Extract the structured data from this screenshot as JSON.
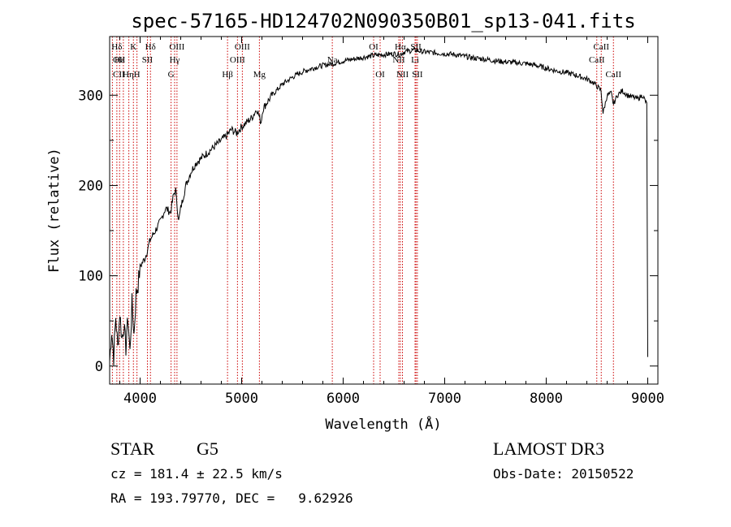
{
  "chart_data": {
    "type": "line",
    "title": "spec-57165-HD124702N090350B01_sp13-041.fits",
    "xlabel": "Wavelength (Å)",
    "ylabel": "Flux (relative)",
    "xlim": [
      3700,
      9100
    ],
    "ylim": [
      -20,
      365
    ],
    "xticks": [
      4000,
      5000,
      6000,
      7000,
      8000,
      9000
    ],
    "yticks": [
      0,
      100,
      200,
      300
    ],
    "x_tick_labels": [
      "4000",
      "5000",
      "6000",
      "7000",
      "8000",
      "9000"
    ],
    "y_tick_labels": [
      "0",
      "100",
      "200",
      "300"
    ],
    "line_color": "#000000",
    "marker_color": "#cc0000",
    "grid": false,
    "series": [
      {
        "x": [
          3700,
          3720,
          3740,
          3760,
          3780,
          3800,
          3820,
          3840,
          3860,
          3880,
          3900,
          3920,
          3940,
          3960,
          3980,
          4000,
          4050,
          4100,
          4150,
          4200,
          4250,
          4300,
          4330,
          4350,
          4380,
          4400,
          4450,
          4500,
          4550,
          4600,
          4650,
          4700,
          4750,
          4800,
          4850,
          4900,
          4950,
          5000,
          5050,
          5100,
          5150,
          5190,
          5210,
          5250,
          5300,
          5400,
          5500,
          5600,
          5700,
          5800,
          5900,
          6000,
          6100,
          6200,
          6300,
          6400,
          6500,
          6560,
          6600,
          6700,
          6800,
          6900,
          7000,
          7100,
          7200,
          7300,
          7400,
          7500,
          7600,
          7700,
          7800,
          7900,
          8000,
          8100,
          8200,
          8300,
          8400,
          8450,
          8500,
          8540,
          8560,
          8600,
          8640,
          8662,
          8700,
          8750,
          8800,
          8850,
          8900,
          8950,
          8990,
          9000
        ],
        "y": [
          5,
          40,
          10,
          55,
          20,
          60,
          30,
          45,
          20,
          55,
          15,
          70,
          35,
          80,
          90,
          110,
          120,
          140,
          150,
          160,
          175,
          170,
          190,
          195,
          160,
          175,
          200,
          215,
          225,
          230,
          235,
          240,
          245,
          250,
          255,
          262,
          258,
          265,
          270,
          275,
          285,
          270,
          285,
          292,
          300,
          312,
          320,
          326,
          330,
          333,
          335,
          338,
          340,
          342,
          344,
          345,
          346,
          345,
          348,
          350,
          348,
          347,
          346,
          345,
          343,
          341,
          340,
          338,
          337,
          336,
          335,
          333,
          330,
          327,
          325,
          322,
          318,
          315,
          310,
          305,
          280,
          300,
          302,
          290,
          300,
          305,
          300,
          298,
          296,
          300,
          290,
          10
        ]
      }
    ],
    "annotations": [
      {
        "label": "Hδ",
        "x": 3771,
        "row": 1
      },
      {
        "label": "Hε",
        "x": 3798,
        "row": 2
      },
      {
        "label": "K",
        "x": 3934,
        "row": 1
      },
      {
        "label": "H",
        "x": 3969,
        "row": 3
      },
      {
        "label": "Hδ",
        "x": 4102,
        "row": 1
      },
      {
        "label": "SII",
        "x": 4072,
        "row": 2
      },
      {
        "label": "OIII",
        "x": 4363,
        "row": 1
      },
      {
        "label": "Hγ",
        "x": 4340,
        "row": 2
      },
      {
        "label": "G",
        "x": 4305,
        "row": 3
      },
      {
        "label": "Hβ",
        "x": 4861,
        "row": 3
      },
      {
        "label": "OIII",
        "x": 4959,
        "row": 2
      },
      {
        "label": "OIII",
        "x": 5007,
        "row": 1
      },
      {
        "label": "Mg",
        "x": 5175,
        "row": 3
      },
      {
        "label": "Na",
        "x": 5893,
        "row": 2
      },
      {
        "label": "OI",
        "x": 6300,
        "row": 1
      },
      {
        "label": "OI",
        "x": 6364,
        "row": 3
      },
      {
        "label": "Hα",
        "x": 6563,
        "row": 1
      },
      {
        "label": "NII",
        "x": 6548,
        "row": 2
      },
      {
        "label": "NII",
        "x": 6584,
        "row": 3
      },
      {
        "label": "Li",
        "x": 6708,
        "row": 2
      },
      {
        "label": "SII",
        "x": 6717,
        "row": 1
      },
      {
        "label": "SII",
        "x": 6731,
        "row": 3
      },
      {
        "label": "CaII",
        "x": 8498,
        "row": 2
      },
      {
        "label": "CaII",
        "x": 8542,
        "row": 1
      },
      {
        "label": "CaII",
        "x": 8662,
        "row": 3
      }
    ],
    "extra_lines": [
      3727,
      3835,
      3889
    ]
  },
  "footer": {
    "class_text": "STAR",
    "subclass_text": "G5",
    "survey_text": "LAMOST DR3",
    "cz_text": "cz = 181.4 ± 22.5 km/s",
    "obs_date_text": "Obs-Date: 20150522",
    "radec_text": "RA = 193.79770, DEC =   9.62926"
  },
  "left_labels": [
    {
      "label": "OII",
      "row": 2
    },
    {
      "label": "CII",
      "row": 3
    },
    {
      "label": "Hη",
      "row": 3
    }
  ]
}
